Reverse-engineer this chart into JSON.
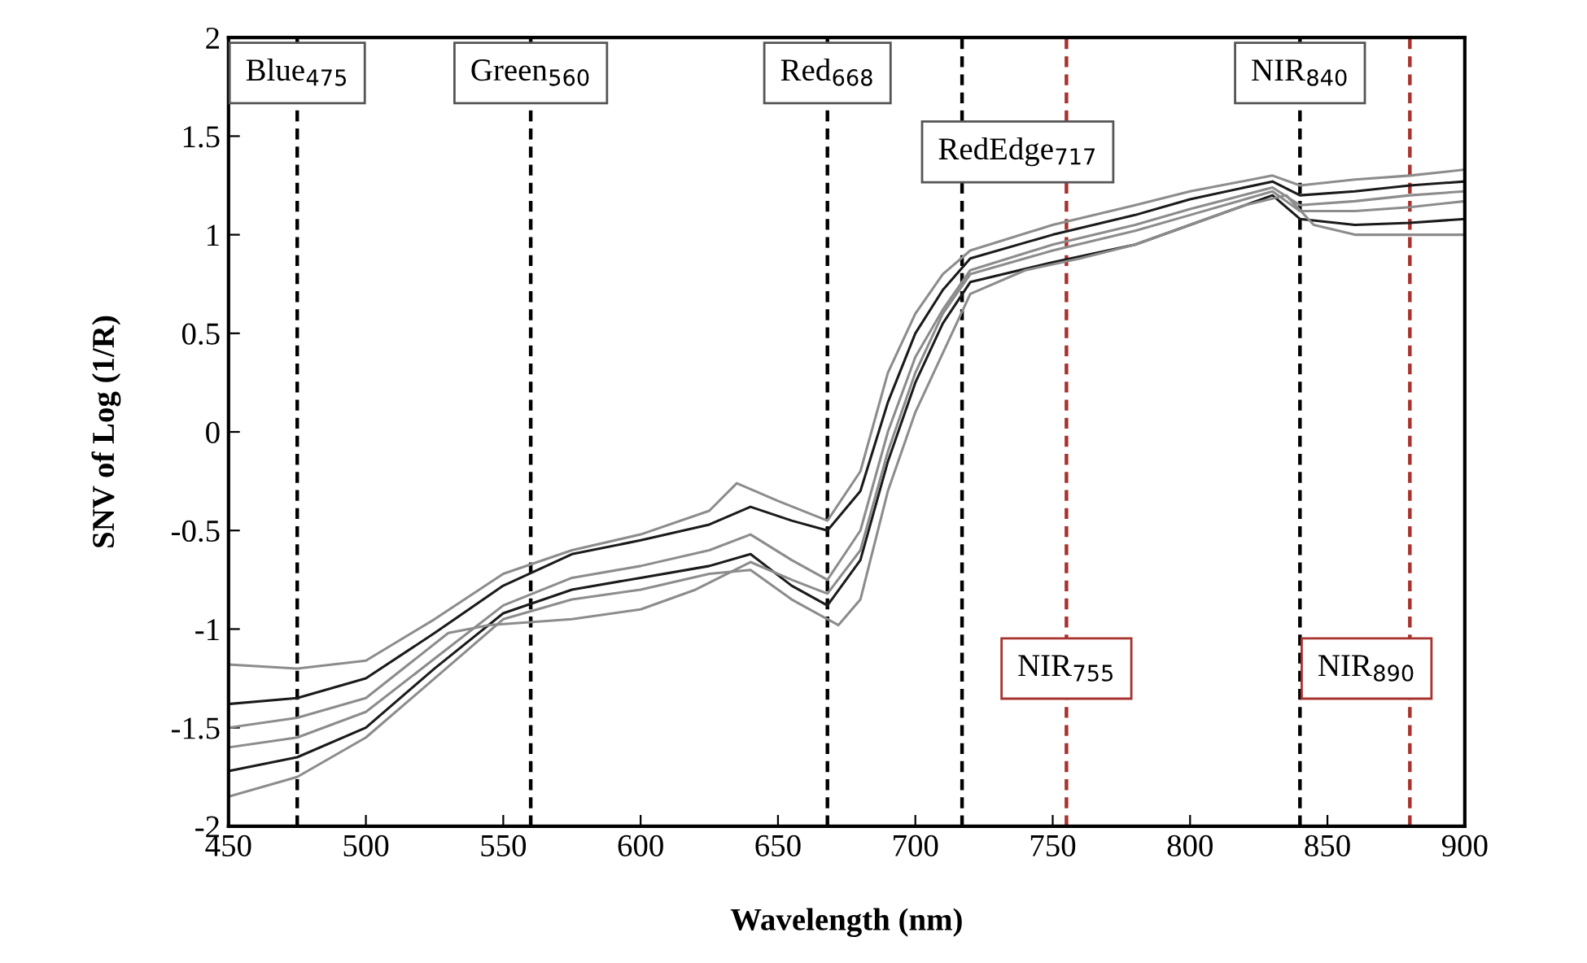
{
  "chart_data": {
    "type": "line",
    "xlabel": "Wavelength (nm)",
    "ylabel": "SNV of Log (1/R)",
    "xlim": [
      450,
      900
    ],
    "xticks": [
      450,
      500,
      550,
      600,
      650,
      700,
      750,
      800,
      850,
      900
    ],
    "ylim": [
      -2,
      2
    ],
    "yticks": [
      -2,
      -1.5,
      -1,
      -0.5,
      0,
      0.5,
      1,
      1.5,
      2
    ],
    "grid": false,
    "legend": false,
    "marker": "none",
    "line_style": "solid",
    "series": [
      {
        "color": "#8c8c8c",
        "x": [
          450,
          475,
          500,
          525,
          550,
          575,
          600,
          625,
          635,
          650,
          668,
          680,
          690,
          700,
          710,
          720,
          750,
          780,
          800,
          830,
          840,
          860,
          880,
          900
        ],
        "values": [
          -1.18,
          -1.2,
          -1.16,
          -0.95,
          -0.72,
          -0.6,
          -0.52,
          -0.4,
          -0.26,
          -0.35,
          -0.45,
          -0.2,
          0.3,
          0.6,
          0.8,
          0.92,
          1.05,
          1.15,
          1.22,
          1.3,
          1.25,
          1.28,
          1.3,
          1.33
        ]
      },
      {
        "color": "#1a1a1a",
        "x": [
          450,
          475,
          500,
          525,
          550,
          575,
          600,
          625,
          640,
          655,
          668,
          680,
          690,
          700,
          710,
          720,
          750,
          780,
          800,
          830,
          840,
          860,
          880,
          900
        ],
        "values": [
          -1.38,
          -1.35,
          -1.25,
          -1.02,
          -0.78,
          -0.62,
          -0.55,
          -0.47,
          -0.38,
          -0.45,
          -0.5,
          -0.3,
          0.15,
          0.5,
          0.72,
          0.88,
          1.0,
          1.1,
          1.18,
          1.27,
          1.2,
          1.22,
          1.25,
          1.27
        ]
      },
      {
        "color": "#8c8c8c",
        "x": [
          450,
          475,
          500,
          525,
          550,
          575,
          600,
          625,
          640,
          655,
          668,
          680,
          690,
          700,
          710,
          720,
          750,
          780,
          800,
          830,
          840,
          860,
          880,
          900
        ],
        "values": [
          -1.6,
          -1.55,
          -1.42,
          -1.15,
          -0.88,
          -0.74,
          -0.68,
          -0.6,
          -0.52,
          -0.65,
          -0.75,
          -0.5,
          0.0,
          0.38,
          0.62,
          0.82,
          0.95,
          1.05,
          1.13,
          1.24,
          1.15,
          1.17,
          1.2,
          1.22
        ]
      },
      {
        "color": "#1a1a1a",
        "x": [
          450,
          475,
          500,
          525,
          550,
          575,
          600,
          625,
          640,
          655,
          668,
          680,
          690,
          700,
          710,
          720,
          750,
          780,
          800,
          830,
          840,
          860,
          880,
          900
        ],
        "values": [
          -1.72,
          -1.65,
          -1.5,
          -1.2,
          -0.92,
          -0.8,
          -0.74,
          -0.68,
          -0.62,
          -0.78,
          -0.88,
          -0.65,
          -0.15,
          0.25,
          0.55,
          0.76,
          0.86,
          0.95,
          1.05,
          1.2,
          1.08,
          1.05,
          1.06,
          1.08
        ]
      },
      {
        "color": "#8c8c8c",
        "x": [
          450,
          475,
          500,
          525,
          550,
          575,
          600,
          625,
          640,
          655,
          672,
          680,
          690,
          700,
          710,
          720,
          740,
          760,
          780,
          800,
          820,
          835,
          845,
          860,
          880,
          900
        ],
        "values": [
          -1.85,
          -1.75,
          -1.55,
          -1.25,
          -0.95,
          -0.85,
          -0.8,
          -0.72,
          -0.7,
          -0.85,
          -0.98,
          -0.85,
          -0.3,
          0.1,
          0.4,
          0.7,
          0.82,
          0.88,
          0.95,
          1.05,
          1.15,
          1.2,
          1.05,
          1.0,
          1.0,
          1.0
        ]
      },
      {
        "color": "#8c8c8c",
        "x": [
          450,
          475,
          500,
          530,
          545,
          575,
          600,
          620,
          640,
          655,
          668,
          680,
          690,
          700,
          710,
          720,
          750,
          780,
          800,
          830,
          840,
          860,
          880,
          900
        ],
        "values": [
          -1.5,
          -1.45,
          -1.35,
          -1.02,
          -0.98,
          -0.95,
          -0.9,
          -0.8,
          -0.66,
          -0.75,
          -0.82,
          -0.6,
          -0.1,
          0.3,
          0.6,
          0.8,
          0.92,
          1.02,
          1.1,
          1.22,
          1.12,
          1.12,
          1.14,
          1.17
        ]
      }
    ],
    "ref_lines": [
      {
        "axis": "x",
        "value": 475,
        "label": "Blue$_{475}$",
        "color": "#000000",
        "line_style": "dashed"
      },
      {
        "axis": "x",
        "value": 560,
        "label": "Green$_{560}$",
        "color": "#000000",
        "line_style": "dashed"
      },
      {
        "axis": "x",
        "value": 668,
        "label": "Red$_{668}$",
        "color": "#000000",
        "line_style": "dashed"
      },
      {
        "axis": "x",
        "value": 717,
        "label": "RedEdge$_{717}$",
        "color": "#000000",
        "line_style": "dashed"
      },
      {
        "axis": "x",
        "value": 755,
        "label": "NIR$_{755}$",
        "color": "#a8322d",
        "line_style": "dashed"
      },
      {
        "axis": "x",
        "value": 840,
        "label": "NIR$_{840}$",
        "color": "#000000",
        "line_style": "dashed"
      },
      {
        "axis": "x",
        "value": 880,
        "label": "NIR$_{890}$",
        "color": "#a8322d",
        "line_style": "dashed"
      }
    ]
  }
}
